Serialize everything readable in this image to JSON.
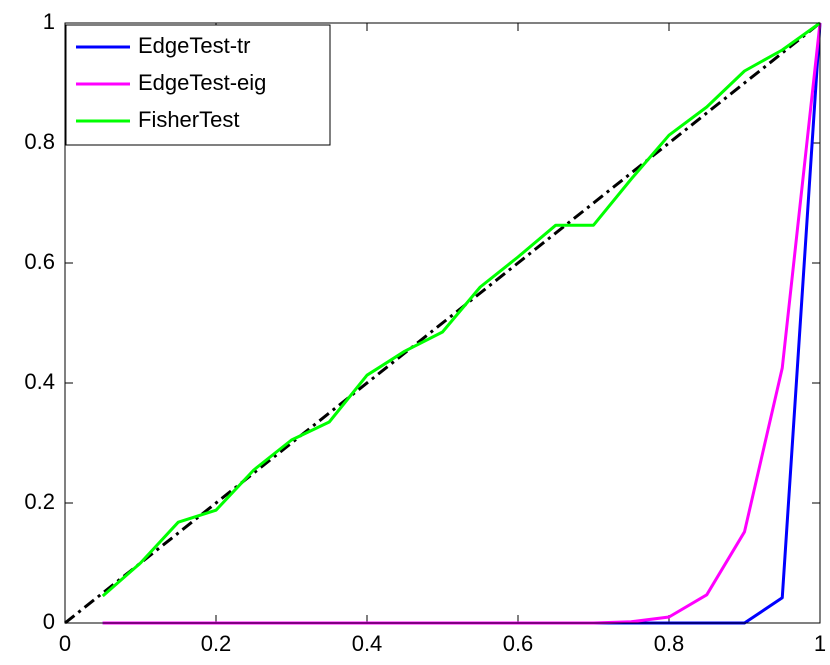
{
  "chart_data": {
    "type": "line",
    "x": [
      0.05,
      0.1,
      0.15,
      0.2,
      0.25,
      0.3,
      0.35,
      0.4,
      0.45,
      0.5,
      0.55,
      0.6,
      0.65,
      0.7,
      0.75,
      0.8,
      0.85,
      0.9,
      0.95,
      1
    ],
    "series": [
      {
        "name": "EdgeTest-tr",
        "color": "#0000ff",
        "values": [
          0,
          0,
          0,
          0,
          0,
          0,
          0,
          0,
          0,
          0,
          0,
          0,
          0,
          0,
          0,
          0,
          0,
          0,
          0.042,
          1
        ]
      },
      {
        "name": "EdgeTest-eig",
        "color": "#ff00ff",
        "values": [
          0,
          0,
          0,
          0,
          0,
          0,
          0,
          0,
          0,
          0,
          0,
          0,
          0,
          0,
          0.002,
          0.01,
          0.047,
          0.152,
          0.425,
          1
        ]
      },
      {
        "name": "FisherTest",
        "color": "#00ff00",
        "values": [
          0.045,
          0.1,
          0.168,
          0.188,
          0.255,
          0.305,
          0.335,
          0.413,
          0.453,
          0.485,
          0.56,
          0.61,
          0.663,
          0.663,
          0.74,
          0.813,
          0.86,
          0.92,
          0.955,
          1
        ]
      }
    ],
    "reference_line": {
      "x": [
        0,
        1
      ],
      "values": [
        0,
        1
      ],
      "color": "#000000",
      "style": "dash-dot"
    },
    "xlim": [
      0,
      1
    ],
    "ylim": [
      0,
      1
    ],
    "xticks": [
      0,
      0.2,
      0.4,
      0.6,
      0.8,
      1
    ],
    "yticks": [
      0,
      0.2,
      0.4,
      0.6,
      0.8,
      1
    ],
    "grid": false,
    "legend": "upper-left"
  }
}
